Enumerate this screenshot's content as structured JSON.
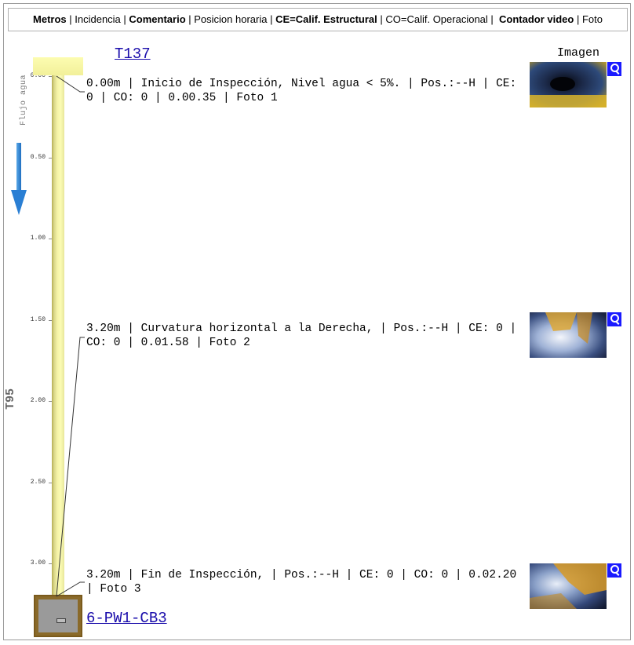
{
  "legend": {
    "metros": "Metros",
    "sep1": " | ",
    "incidencia": "Incidencia",
    "sep2": " | ",
    "comentario": "Comentario",
    "sep3": " | ",
    "posicion": "Posicion horaria",
    "sep4": " | ",
    "ce": "CE=Calif. Estructural",
    "sep5": " | ",
    "co": "CO=Calif. Operacional",
    "sep6": " |  ",
    "contador": "Contador video",
    "sep7": " | ",
    "foto": "Foto"
  },
  "nodes": {
    "start": "T137",
    "end": "6-PW1-CB3"
  },
  "pipe": {
    "id": "T95",
    "flow_label": "Flujo agua",
    "length_m": 3.2
  },
  "axis": {
    "ticks": [
      "0.00",
      "0.50",
      "1.00",
      "1.50",
      "2.00",
      "2.50",
      "3.00"
    ]
  },
  "image_column_header": "Imagen",
  "observations": [
    {
      "text": "0.00m | Inicio de Inspección, Nivel agua < 5%. | Pos.:--H | CE: 0 | CO: 0 | 0.00.35 | Foto 1",
      "thumb_icon": "zoom-icon"
    },
    {
      "text": "3.20m | Curvatura horizontal a la Derecha, | Pos.:--H | CE: 0 | CO: 0 | 0.01.58 | Foto 2",
      "thumb_icon": "zoom-icon"
    },
    {
      "text": "3.20m | Fin de Inspección, | Pos.:--H | CE: 0 | CO: 0 | 0.02.20 | Foto 3",
      "thumb_icon": "zoom-icon"
    }
  ],
  "colors": {
    "link": "#1a0dab",
    "pipe": "#fbfbb4",
    "flow_arrow": "#2a7fd4",
    "zoom_button": "#1a1aff"
  }
}
